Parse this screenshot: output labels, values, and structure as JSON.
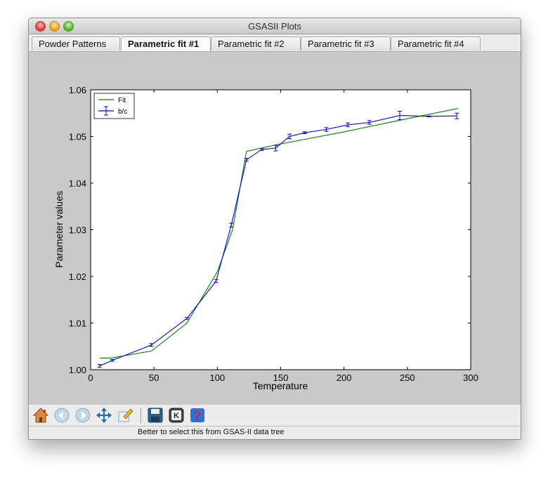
{
  "window": {
    "title": "GSASII Plots"
  },
  "tabs": [
    {
      "label": "Powder Patterns",
      "active": false
    },
    {
      "label": "Parametric fit #1",
      "active": true
    },
    {
      "label": "Parametric fit #2",
      "active": false
    },
    {
      "label": "Parametric fit #3",
      "active": false
    },
    {
      "label": "Parametric fit #4",
      "active": false
    }
  ],
  "toolbar": {
    "buttons": [
      {
        "icon": "home-icon"
      },
      {
        "icon": "back-arrow-icon"
      },
      {
        "icon": "forward-arrow-icon"
      },
      {
        "icon": "pan-move-icon"
      },
      {
        "icon": "configure-subplots-icon"
      },
      {
        "icon": "save-disk-icon"
      },
      {
        "icon": "keyboard-k-icon"
      },
      {
        "icon": "help-question-icon"
      }
    ]
  },
  "status": {
    "text": "Better to select this from GSAS-II data tree"
  },
  "chart_data": {
    "type": "line",
    "xlabel": "Temperature",
    "ylabel": "Parameter values",
    "xlim": [
      0,
      300
    ],
    "ylim": [
      1.0,
      1.06
    ],
    "xticks": [
      "0",
      "50",
      "100",
      "150",
      "200",
      "250",
      "300"
    ],
    "yticks": [
      "1.00",
      "1.01",
      "1.02",
      "1.03",
      "1.04",
      "1.05",
      "1.06"
    ],
    "grid": false,
    "legend_position": "top-left",
    "series": [
      {
        "name": "Fit",
        "color": "#008000",
        "errorbars": false,
        "x": [
          7,
          16,
          48,
          76,
          100,
          112,
          123,
          146,
          200,
          250,
          290
        ],
        "y": [
          1.0025,
          1.0025,
          1.004,
          1.01,
          1.021,
          1.03,
          1.0468,
          1.0482,
          1.051,
          1.0538,
          1.056
        ]
      },
      {
        "name": "b/c",
        "color": "#0000ff",
        "errorbars": true,
        "x": [
          7,
          17,
          48,
          76,
          99,
          111,
          123,
          135,
          146,
          157,
          169,
          186,
          203,
          220,
          244,
          267,
          289
        ],
        "y": [
          1.0008,
          1.002,
          1.0053,
          1.011,
          1.019,
          1.031,
          1.045,
          1.0472,
          1.0475,
          1.05,
          1.0508,
          1.0515,
          1.0525,
          1.053,
          1.0545,
          1.0543,
          1.0544
        ],
        "err": [
          0.0003,
          0.0002,
          0.0003,
          0.0002,
          0.0003,
          0.0004,
          0.0003,
          0.0002,
          0.0006,
          0.0005,
          0.0002,
          0.0004,
          0.0004,
          0.0004,
          0.0009,
          0.0001,
          0.0006
        ]
      }
    ]
  }
}
